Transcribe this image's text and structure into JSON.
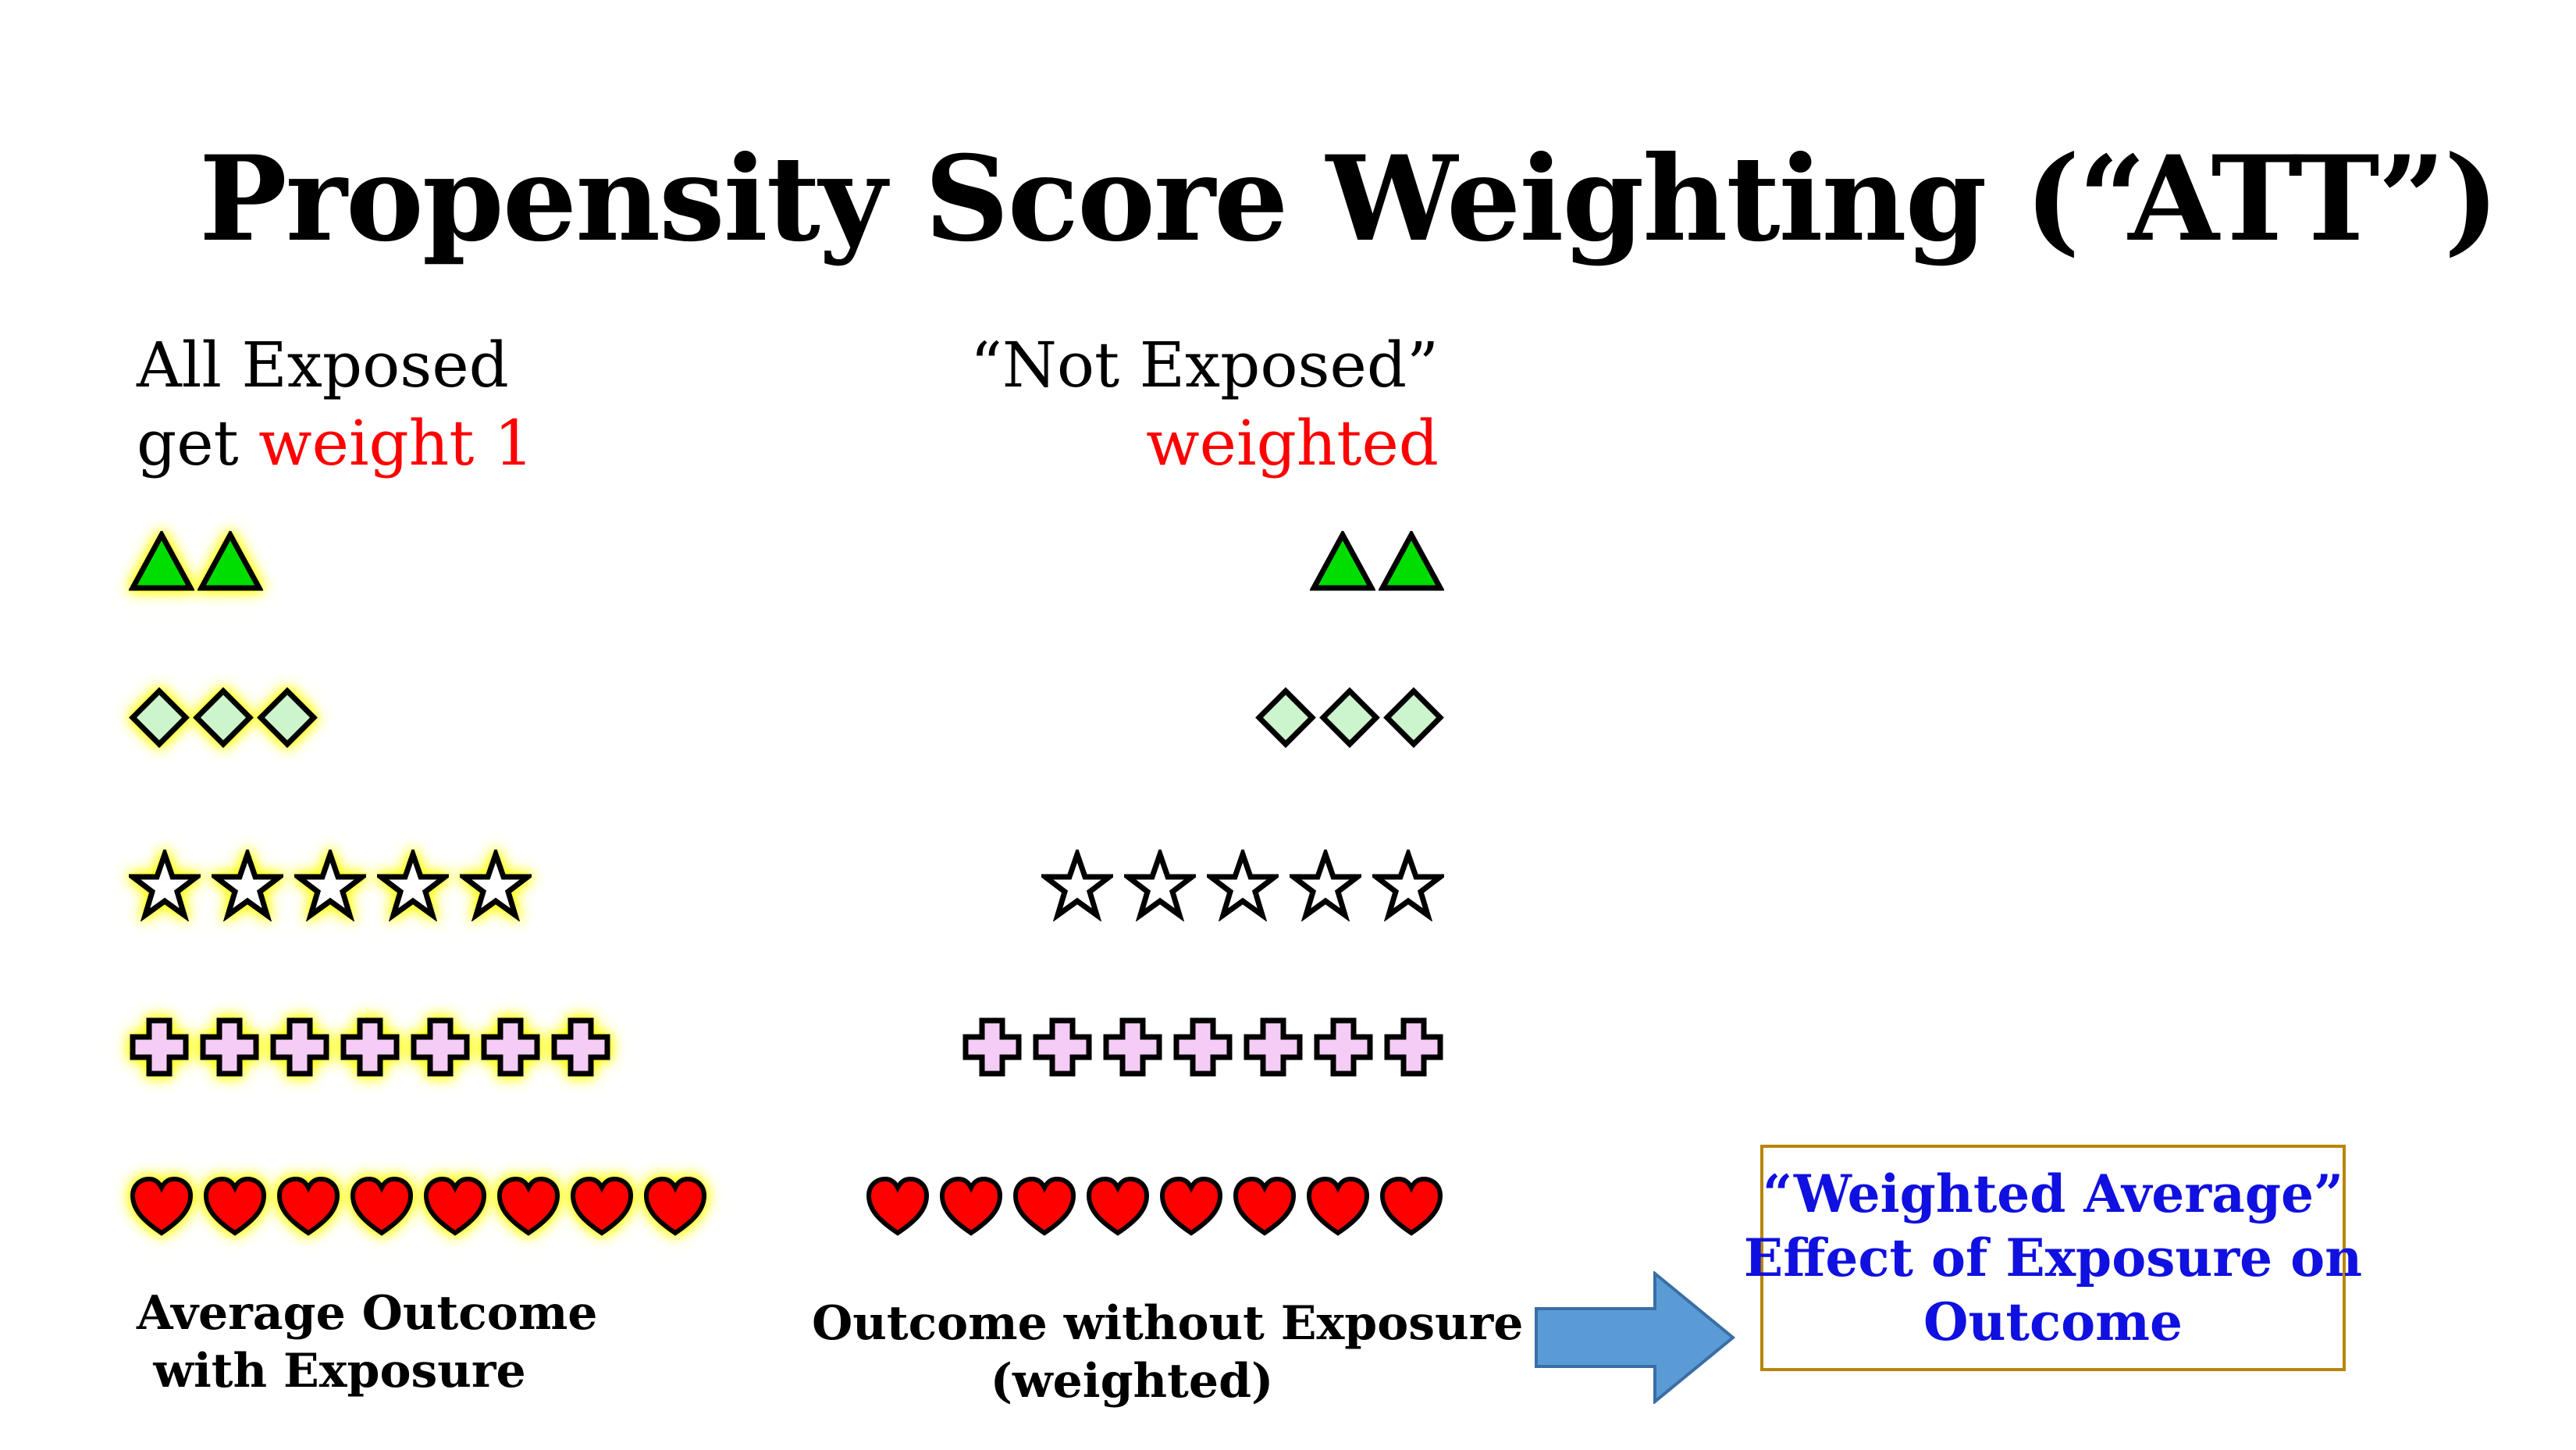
{
  "title": "Propensity Score Weighting (“ATT”)",
  "left_header": {
    "line1": "All Exposed",
    "line2_prefix": "get ",
    "line2_highlight": "weight 1"
  },
  "right_header": {
    "line1": "“Not Exposed”",
    "line2": "weighted"
  },
  "colors": {
    "red_text": "#ff0000",
    "blue_text": "#1010e0",
    "triangle": "#00dd00",
    "diamond": "#ccf5cc",
    "cross": "#f5ccf5",
    "heart": "#ff0000",
    "glow": "#ffff00",
    "arrow_fill": "#5b9bd5",
    "box_border": "#b8860b"
  },
  "rows": [
    {
      "shape": "triangle-icon",
      "left_count": 2,
      "right_count": 2
    },
    {
      "shape": "diamond-icon",
      "left_count": 3,
      "right_count": 3
    },
    {
      "shape": "star-icon",
      "left_count": 5,
      "right_count": 5
    },
    {
      "shape": "cross-icon",
      "left_count": 7,
      "right_count": 7
    },
    {
      "shape": "heart-icon",
      "left_count": 8,
      "right_count": 8
    }
  ],
  "captions": {
    "left_line1": "Average Outcome",
    "left_line2": "with Exposure",
    "right_line1": "Outcome without Exposure",
    "right_line2": "(weighted)"
  },
  "result_box": {
    "line1": "“Weighted Average”",
    "line2": "Effect of Exposure on",
    "line3": "Outcome"
  },
  "arrow_icon": "right-arrow-icon"
}
